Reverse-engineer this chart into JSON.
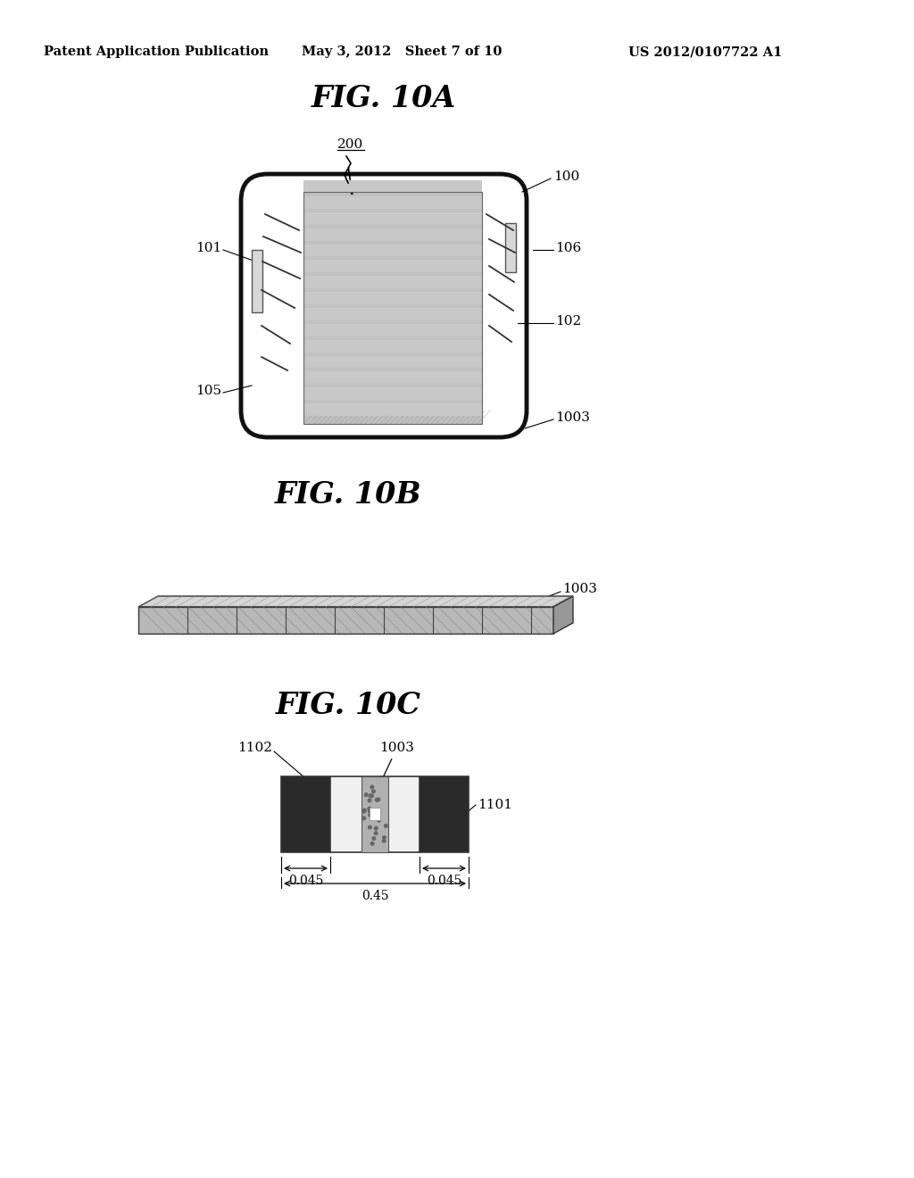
{
  "bg_color": "#ffffff",
  "header_left": "Patent Application Publication",
  "header_center": "May 3, 2012   Sheet 7 of 10",
  "header_right": "US 2012/0107722 A1",
  "fig10A_title": "FIG. 10A",
  "fig10B_title": "FIG. 10B",
  "fig10C_title": "FIG. 10C",
  "line_color": "#000000",
  "gray_cell": "#c0c0c0",
  "gray_stripe": "#909090",
  "gray_bar_top": "#d0d0d0",
  "gray_bar_front": "#b0b0b0",
  "gray_bar_side": "#989898",
  "port_fill": "#e0e0e0"
}
